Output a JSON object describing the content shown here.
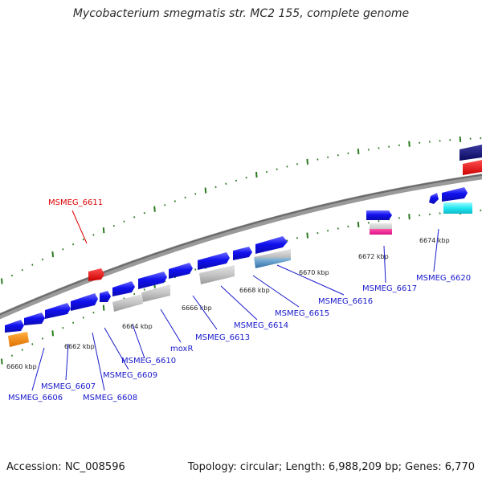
{
  "title": "Mycobacterium smegmatis str. MC2 155, complete genome",
  "footer": {
    "accession": "Accession: NC_008596",
    "summary": "Topology: circular; Length: 6,988,209 bp; Genes: 6,770"
  },
  "colors": {
    "forward_gene": "#1a1aee",
    "highlight_label": "#dd0000",
    "normal_label": "#1a1acc",
    "tick": "#2a7a1e",
    "axis": "#8a8a8a"
  },
  "kbp_labels": [
    "6660 kbp",
    "6662 kbp",
    "6664 kbp",
    "6666 kbp",
    "6668 kbp",
    "6670 kbp",
    "6672 kbp",
    "6674 kbp"
  ],
  "gene_labels": [
    {
      "id": "MSMEG_6606",
      "color": "blue"
    },
    {
      "id": "MSMEG_6607",
      "color": "blue"
    },
    {
      "id": "MSMEG_6608",
      "color": "blue"
    },
    {
      "id": "MSMEG_6609",
      "color": "blue"
    },
    {
      "id": "MSMEG_6610",
      "color": "blue"
    },
    {
      "id": "moxR",
      "color": "blue"
    },
    {
      "id": "MSMEG_6611",
      "color": "red"
    },
    {
      "id": "MSMEG_6613",
      "color": "blue"
    },
    {
      "id": "MSMEG_6614",
      "color": "blue"
    },
    {
      "id": "MSMEG_6615",
      "color": "blue"
    },
    {
      "id": "MSMEG_6616",
      "color": "blue"
    },
    {
      "id": "MSMEG_6617",
      "color": "blue"
    },
    {
      "id": "MSMEG_6620",
      "color": "blue"
    }
  ]
}
